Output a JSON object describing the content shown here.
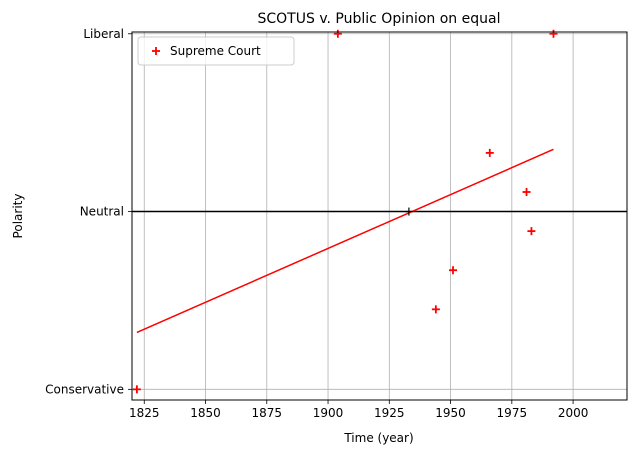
{
  "chart_data": {
    "type": "scatter",
    "title": "SCOTUS v. Public Opinion on equal",
    "xlabel": "Time (year)",
    "ylabel": "Polarity",
    "xlim": [
      1820,
      2022
    ],
    "ylim": [
      -1.06,
      1.01
    ],
    "x_ticks": [
      1825,
      1850,
      1875,
      1900,
      1925,
      1950,
      1975,
      2000
    ],
    "x_tick_labels": [
      "1825",
      "1850",
      "1875",
      "1900",
      "1925",
      "1950",
      "1975",
      "2000"
    ],
    "y_ticks": [
      -1,
      0,
      1
    ],
    "y_tick_labels": [
      "Conservative",
      "Neutral",
      "Liberal"
    ],
    "grid": true,
    "legend_position": "top-left",
    "series": [
      {
        "name": "Supreme Court",
        "marker": "plus",
        "color": "#ff0000",
        "points": [
          {
            "x": 1822,
            "y": -1.0
          },
          {
            "x": 1904,
            "y": 1.0
          },
          {
            "x": 1944,
            "y": -0.55
          },
          {
            "x": 1951,
            "y": -0.33
          },
          {
            "x": 1966,
            "y": 0.33
          },
          {
            "x": 1981,
            "y": 0.11
          },
          {
            "x": 1983,
            "y": -0.11
          },
          {
            "x": 1992,
            "y": 1.0
          }
        ]
      }
    ],
    "trend_line": {
      "x": [
        1822,
        1992
      ],
      "y": [
        -0.68,
        0.35
      ],
      "color": "#ff0000"
    },
    "neutral_line": {
      "y": 0,
      "color": "#000000"
    },
    "intersection_marker": {
      "x": 1933,
      "y": 0
    }
  }
}
